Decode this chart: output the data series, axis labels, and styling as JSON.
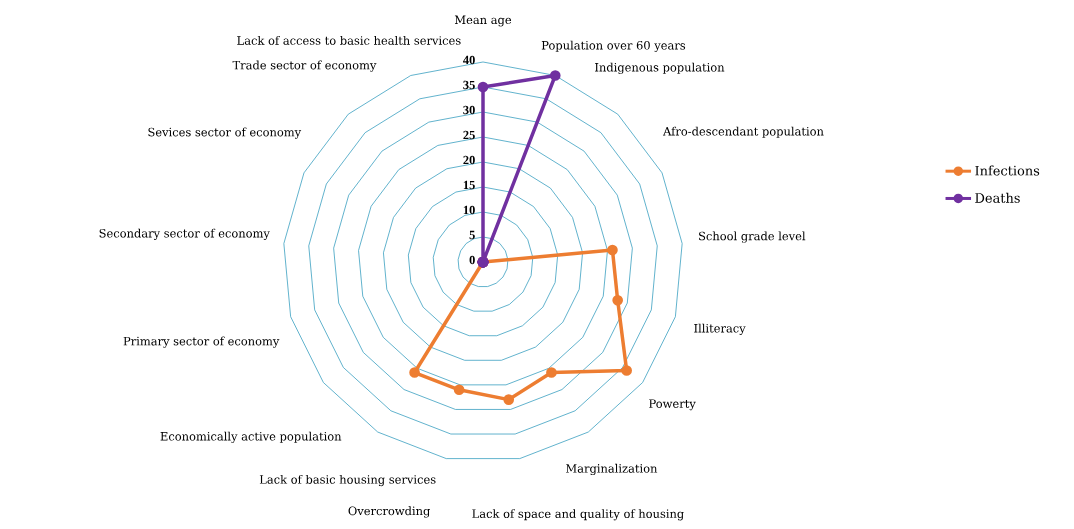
{
  "chart_data": {
    "type": "radar",
    "categories": [
      "Mean age",
      "Population over 60 years",
      "Indigenous population",
      "Afro-descendant population",
      "School grade level",
      "Illiteracy",
      "Powerty",
      "Marginalization",
      "Lack of space and quality of housing",
      "Overcrowding",
      "Lack of basic housing services",
      "Economically active population",
      "Primary sector of economy",
      "Secondary sector of economy",
      "Sevices sector of economy",
      "Trade sector of economy",
      "Lack of access to basic health services"
    ],
    "series": [
      {
        "name": "Infections",
        "color": "#ed7d31",
        "values": [
          0,
          0,
          0,
          0,
          26,
          28,
          36,
          26,
          28,
          26,
          26,
          0,
          0,
          0,
          0,
          0,
          0
        ]
      },
      {
        "name": "Deaths",
        "color": "#7030a0",
        "values": [
          35,
          40,
          0,
          0,
          0,
          0,
          0,
          0,
          0,
          0,
          0,
          0,
          0,
          0,
          0,
          0,
          0
        ]
      }
    ],
    "ylim": [
      0,
      40
    ],
    "yticks": [
      0,
      5,
      10,
      15,
      20,
      25,
      30,
      35,
      40
    ],
    "grid": true,
    "legend": "right",
    "marker": "circle",
    "line_style": "solid"
  }
}
